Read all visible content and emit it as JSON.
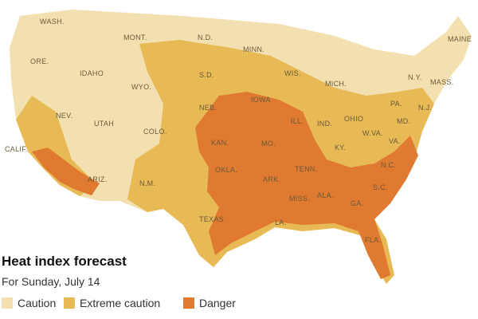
{
  "header": {
    "title": "Heat index forecast",
    "subtitle": "For Sunday, July 14"
  },
  "legend": [
    {
      "label": "Caution",
      "color": "#f3e0b0"
    },
    {
      "label": "Extreme caution",
      "color": "#e8ba55"
    },
    {
      "label": "Danger",
      "color": "#df7a30"
    }
  ],
  "states": [
    "WASH.",
    "MONT.",
    "N.D.",
    "MINN.",
    "MAINE",
    "ORE.",
    "IDAHO",
    "WYO.",
    "S.D.",
    "WIS.",
    "MICH.",
    "N.Y.",
    "MASS.",
    "NEV.",
    "UTAH",
    "COLO.",
    "NEB.",
    "IOWA",
    "ILL.",
    "IND.",
    "OHIO",
    "PA.",
    "N.J.",
    "MD.",
    "CALIF.",
    "KAN.",
    "MO.",
    "KY.",
    "W.VA.",
    "VA.",
    "ARIZ.",
    "N.M.",
    "OKLA.",
    "ARK.",
    "TENN.",
    "N.C.",
    "S.C.",
    "MISS.",
    "ALA.",
    "GA.",
    "TEXAS",
    "LA.",
    "FLA."
  ]
}
